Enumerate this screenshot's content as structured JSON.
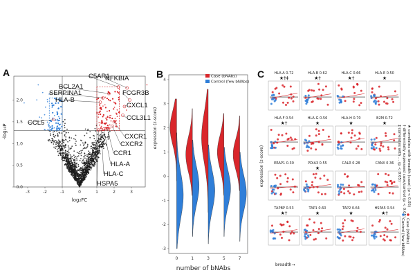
{
  "figure": {
    "panel_letters": [
      "A",
      "B",
      "C"
    ]
  },
  "colors": {
    "case": "#d9262b",
    "control": "#2f7ed8",
    "points": "#1a1a1a",
    "highlight_case": "#e8464a",
    "highlight_control": "#4c9be8"
  },
  "chart_data": [
    {
      "id": "A",
      "type": "scatter",
      "subtype": "volcano",
      "title": "",
      "xlabel": "log₂FC",
      "ylabel": "-log₁₀P",
      "xlim": [
        -3.8,
        3.8
      ],
      "ylim": [
        0,
        2.55
      ],
      "xticks": [
        -3,
        -2,
        -1,
        0,
        1,
        2,
        3
      ],
      "yticks": [
        0.0,
        0.5,
        1.0,
        1.5,
        2.0
      ],
      "ytick_labels": [
        "0.0",
        "0.5",
        "1.0",
        "1.5",
        "2.0"
      ],
      "thresholds": {
        "fc_low": -1,
        "fc_high": 1,
        "p": 1.3
      },
      "n_background_points": 1500,
      "labeled_genes": [
        {
          "gene": "NFKBIA",
          "x": 2.75,
          "y": 2.28
        },
        {
          "gene": "C5AR1",
          "x": 2.25,
          "y": 2.3
        },
        {
          "gene": "BCL2A1",
          "x": 1.7,
          "y": 2.15
        },
        {
          "gene": "SERPINA1",
          "x": 1.35,
          "y": 2.05
        },
        {
          "gene": "HLA-B",
          "x": 1.2,
          "y": 1.95
        },
        {
          "gene": "FCGR3B",
          "x": 2.9,
          "y": 2.0
        },
        {
          "gene": "CXCL1",
          "x": 2.6,
          "y": 1.85
        },
        {
          "gene": "CCL3L1",
          "x": 2.5,
          "y": 1.65
        },
        {
          "gene": "CCL5",
          "x": -1.5,
          "y": 1.55
        },
        {
          "gene": "CXCR1",
          "x": 2.0,
          "y": 1.5
        },
        {
          "gene": "CXCR2",
          "x": 1.9,
          "y": 1.4
        },
        {
          "gene": "CCR1",
          "x": 1.6,
          "y": 1.35
        },
        {
          "gene": "HLA-A",
          "x": 1.4,
          "y": 1.33
        },
        {
          "gene": "HLA-C",
          "x": 1.25,
          "y": 1.32
        },
        {
          "gene": "HSPA5",
          "x": 1.1,
          "y": 1.31
        }
      ]
    },
    {
      "id": "B",
      "type": "violin",
      "title": "",
      "xlabel": "number of bNAbs",
      "ylabel": "expression (z-score)",
      "categories": [
        "0",
        "1",
        "3",
        "5",
        "7"
      ],
      "ylim": [
        -3.2,
        4.2
      ],
      "yticks": [
        -3,
        -2,
        -1,
        0,
        1,
        2,
        3,
        4
      ],
      "legend": {
        "position": "top-right",
        "entries": [
          "Case (bNAbs)",
          "Control (few bNAbs)"
        ]
      },
      "series": [
        {
          "name": "Case (bNAbs)",
          "modes": [
            2.0,
            0.9,
            1.6,
            1.0,
            0.9
          ],
          "ranges": [
            [
              -0.2,
              3.2
            ],
            [
              -0.8,
              2.8
            ],
            [
              -1.5,
              3.6
            ],
            [
              -0.8,
              2.6
            ],
            [
              -0.6,
              2.5
            ]
          ]
        },
        {
          "name": "Control (few bNAbs)",
          "modes": [
            -0.8,
            -0.4,
            -0.6,
            -0.5,
            -0.7
          ],
          "ranges": [
            [
              -3.0,
              1.8
            ],
            [
              -2.5,
              1.5
            ],
            [
              -2.8,
              1.3
            ],
            [
              -2.5,
              1.2
            ],
            [
              -2.7,
              1.0
            ]
          ]
        }
      ]
    },
    {
      "id": "C",
      "type": "scatter",
      "subtype": "small-multiples",
      "ylabel": "expression (z-score)",
      "xlabel": "breadth→",
      "legend_notes": [
        "★ correlates with breadth (case) (p < 0.05)",
        "† differentially expressed case/control (p < 0.05)",
        "‡ correlates with ... (p < 0.05)"
      ],
      "legend_entries": [
        "Case (bNAbs)",
        "Control (few bNAbs)"
      ],
      "panels": [
        {
          "title": "HLA-A",
          "r": "0.72",
          "marks": "★†‡"
        },
        {
          "title": "HLA-B",
          "r": "0.62",
          "marks": "★†"
        },
        {
          "title": "HLA-C",
          "r": "0.66",
          "marks": "★†"
        },
        {
          "title": "HLA-E",
          "r": "0.50",
          "marks": "★"
        },
        {
          "title": "HLA-F",
          "r": "0.54",
          "marks": "★†"
        },
        {
          "title": "HLA-G",
          "r": "0.56",
          "marks": "★"
        },
        {
          "title": "HLA-H",
          "r": "0.70",
          "marks": "★"
        },
        {
          "title": "B2M",
          "r": "0.72",
          "marks": "★"
        },
        {
          "title": "ERAP1",
          "r": "0.30",
          "marks": ""
        },
        {
          "title": "PDIA3",
          "r": "0.55",
          "marks": "★"
        },
        {
          "title": "CALR",
          "r": "0.28",
          "marks": ""
        },
        {
          "title": "CANX",
          "r": "0.36",
          "marks": ""
        },
        {
          "title": "TAPBP",
          "r": "0.53",
          "marks": "★†"
        },
        {
          "title": "TAP1",
          "r": "0.60",
          "marks": "★"
        },
        {
          "title": "TAP2",
          "r": "0.64",
          "marks": "★"
        },
        {
          "title": "HSPA5",
          "r": "0.54",
          "marks": "★†"
        }
      ]
    }
  ]
}
